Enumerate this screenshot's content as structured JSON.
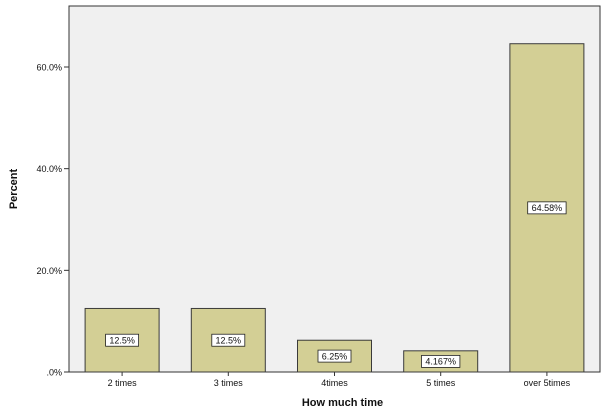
{
  "chart_data": {
    "type": "bar",
    "categories": [
      "2 times",
      "3 times",
      "4times",
      "5 times",
      "over 5times"
    ],
    "values": [
      12.5,
      12.5,
      6.25,
      4.167,
      64.58
    ],
    "data_labels": [
      "12.5%",
      "12.5%",
      "6.25%",
      "4.167%",
      "64.58%"
    ],
    "xlabel": "How much time",
    "ylabel": "Percent",
    "ylim": [
      0,
      72
    ],
    "yticks": [
      0,
      20,
      40,
      60
    ],
    "ytick_labels": [
      ".0%",
      "20.0%",
      "40.0%",
      "60.0%"
    ],
    "grid": false,
    "legend": "none",
    "colors": {
      "plot_background": "#f0f0f0",
      "bar_fill": "#d3cf95",
      "bar_stroke": "#3a3a3a",
      "axis": "#333333",
      "label_box_fill": "#ffffff"
    }
  }
}
